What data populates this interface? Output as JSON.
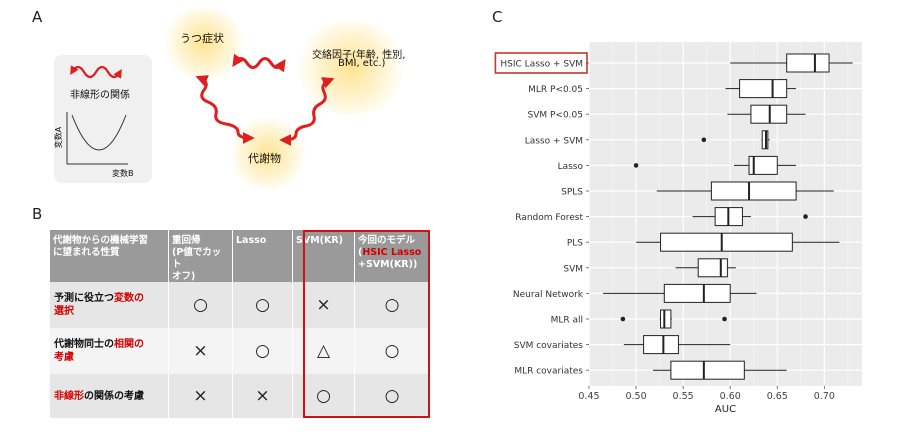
{
  "panel_labels": {
    "a": "A",
    "b": "B",
    "c": "C"
  },
  "panel_a": {
    "depression": "うつ症状",
    "confounders_line1": "交絡因子(年齢, 性別,",
    "confounders_line2": "BMI, etc.)",
    "metabolite": "代謝物",
    "inset_title": "非線形の関係",
    "inset_ylabel": "変数A",
    "inset_xlabel": "変数B",
    "arrow_color": "#e01e1e"
  },
  "panel_b": {
    "header": {
      "row_label": [
        "代謝物からの機械学習",
        "に望まれる性質"
      ],
      "col1": [
        "重回帰",
        "(P値でカット",
        "オフ)"
      ],
      "col2": [
        "Lasso"
      ],
      "col3": [
        "SVM(KR)"
      ],
      "col4_line1": "今回のモデル",
      "col4_line2_a": "(",
      "col4_line2_b": "HSIC Lasso",
      "col4_line3": "+SVM(KR))"
    },
    "rows": [
      {
        "label_parts": [
          "予測に役立つ",
          "変数の",
          "選択"
        ],
        "label_red": [
          false,
          true,
          true
        ],
        "symbols": [
          "○",
          "○",
          "×",
          "○"
        ]
      },
      {
        "label_parts": [
          "代謝物同士の",
          "相関の",
          "考慮"
        ],
        "label_red": [
          false,
          true,
          true
        ],
        "symbols": [
          "×",
          "○",
          "△",
          "○"
        ]
      },
      {
        "label_parts": [
          "非線形",
          "の関係の考慮"
        ],
        "label_red": [
          true,
          false
        ],
        "symbols": [
          "×",
          "×",
          "○",
          "○"
        ]
      }
    ],
    "highlight_color": "#d21212"
  },
  "chart_data": {
    "type": "boxplot",
    "xlabel": "AUC",
    "xlim": [
      0.45,
      0.74
    ],
    "xticks": [
      "0.45",
      "0.50",
      "0.55",
      "0.60",
      "0.65",
      "0.70"
    ],
    "xtick_values": [
      0.45,
      0.5,
      0.55,
      0.6,
      0.65,
      0.7
    ],
    "grid": true,
    "highlighted_category": "HSIC Lasso + SVM",
    "highlight_color": "#c0392b",
    "categories": [
      "HSIC Lasso + SVM",
      "MLR P<0.05",
      "SVM P<0.05",
      "Lasso + SVM",
      "Lasso",
      "SPLS",
      "Random Forest",
      "PLS",
      "SVM",
      "Neural Network",
      "MLR all",
      "SVM covariates",
      "MLR covariates"
    ],
    "boxes": [
      {
        "whisker_low": 0.6,
        "q1": 0.66,
        "median": 0.69,
        "q3": 0.705,
        "whisker_high": 0.73,
        "outliers": []
      },
      {
        "whisker_low": 0.595,
        "q1": 0.61,
        "median": 0.645,
        "q3": 0.66,
        "whisker_high": 0.67,
        "outliers": []
      },
      {
        "whisker_low": 0.597,
        "q1": 0.622,
        "median": 0.642,
        "q3": 0.66,
        "whisker_high": 0.68,
        "outliers": []
      },
      {
        "whisker_low": 0.633,
        "q1": 0.634,
        "median": 0.638,
        "q3": 0.64,
        "whisker_high": 0.642,
        "outliers": [
          0.572
        ]
      },
      {
        "whisker_low": 0.604,
        "q1": 0.62,
        "median": 0.625,
        "q3": 0.65,
        "whisker_high": 0.67,
        "outliers": [
          0.5
        ]
      },
      {
        "whisker_low": 0.522,
        "q1": 0.58,
        "median": 0.62,
        "q3": 0.67,
        "whisker_high": 0.71,
        "outliers": []
      },
      {
        "whisker_low": 0.56,
        "q1": 0.584,
        "median": 0.598,
        "q3": 0.613,
        "whisker_high": 0.622,
        "outliers": [
          0.68
        ]
      },
      {
        "whisker_low": 0.5,
        "q1": 0.526,
        "median": 0.591,
        "q3": 0.666,
        "whisker_high": 0.716,
        "outliers": []
      },
      {
        "whisker_low": 0.542,
        "q1": 0.566,
        "median": 0.59,
        "q3": 0.597,
        "whisker_high": 0.606,
        "outliers": []
      },
      {
        "whisker_low": 0.465,
        "q1": 0.53,
        "median": 0.572,
        "q3": 0.6,
        "whisker_high": 0.628,
        "outliers": []
      },
      {
        "whisker_low": 0.525,
        "q1": 0.526,
        "median": 0.53,
        "q3": 0.537,
        "whisker_high": 0.538,
        "outliers": [
          0.486,
          0.594
        ]
      },
      {
        "whisker_low": 0.487,
        "q1": 0.508,
        "median": 0.529,
        "q3": 0.545,
        "whisker_high": 0.6,
        "outliers": []
      },
      {
        "whisker_low": 0.518,
        "q1": 0.537,
        "median": 0.572,
        "q3": 0.615,
        "whisker_high": 0.66,
        "outliers": []
      }
    ]
  }
}
